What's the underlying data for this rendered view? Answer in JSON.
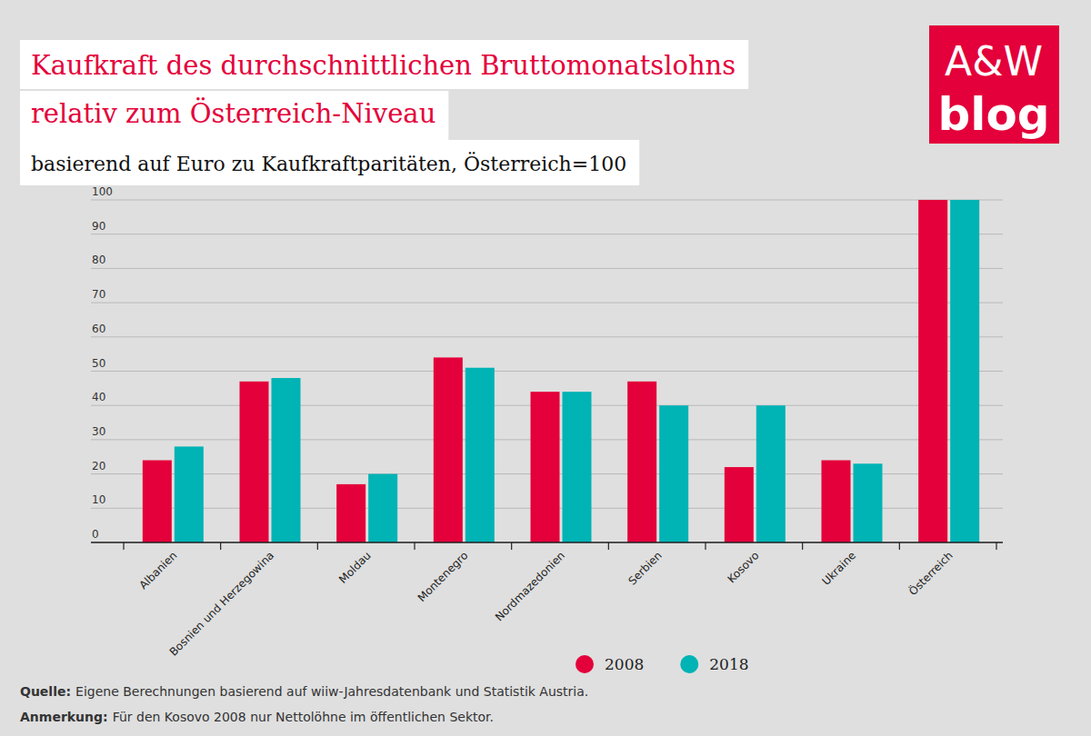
{
  "chart_data": {
    "type": "bar",
    "title": [
      "Kaufkraft des durchschnittlichen Bruttomonatslohns",
      "relativ zum Österreich-Niveau"
    ],
    "subtitle": "basierend auf Euro zu Kaufkraftparitäten, Österreich=100",
    "logo": [
      "A&W",
      "blog"
    ],
    "categories": [
      "Albanien",
      "Bosnien und Herzegowina",
      "Moldau",
      "Montenegro",
      "Nordmazedonien",
      "Serbien",
      "Kosovo",
      "Ukraine",
      "Österreich"
    ],
    "series": [
      {
        "name": "2008",
        "color": "#e4003a",
        "values": [
          24,
          47,
          17,
          54,
          44,
          47,
          22,
          24,
          100
        ]
      },
      {
        "name": "2018",
        "color": "#00b3b5",
        "values": [
          28,
          48,
          20,
          51,
          44,
          40,
          40,
          23,
          100
        ]
      }
    ],
    "ylim": [
      0,
      100
    ],
    "yticks": [
      0,
      10,
      20,
      30,
      40,
      50,
      60,
      70,
      80,
      90,
      100
    ],
    "grid": true,
    "legend": "bottom",
    "source": {
      "label": "Quelle:",
      "text": "Eigene Berechnungen basierend auf wiiw-Jahresdatenbank und Statistik Austria."
    },
    "note": {
      "label": "Anmerkung:",
      "text": "Für den Kosovo 2008 nur Nettolöhne im öffentlichen Sektor."
    }
  }
}
